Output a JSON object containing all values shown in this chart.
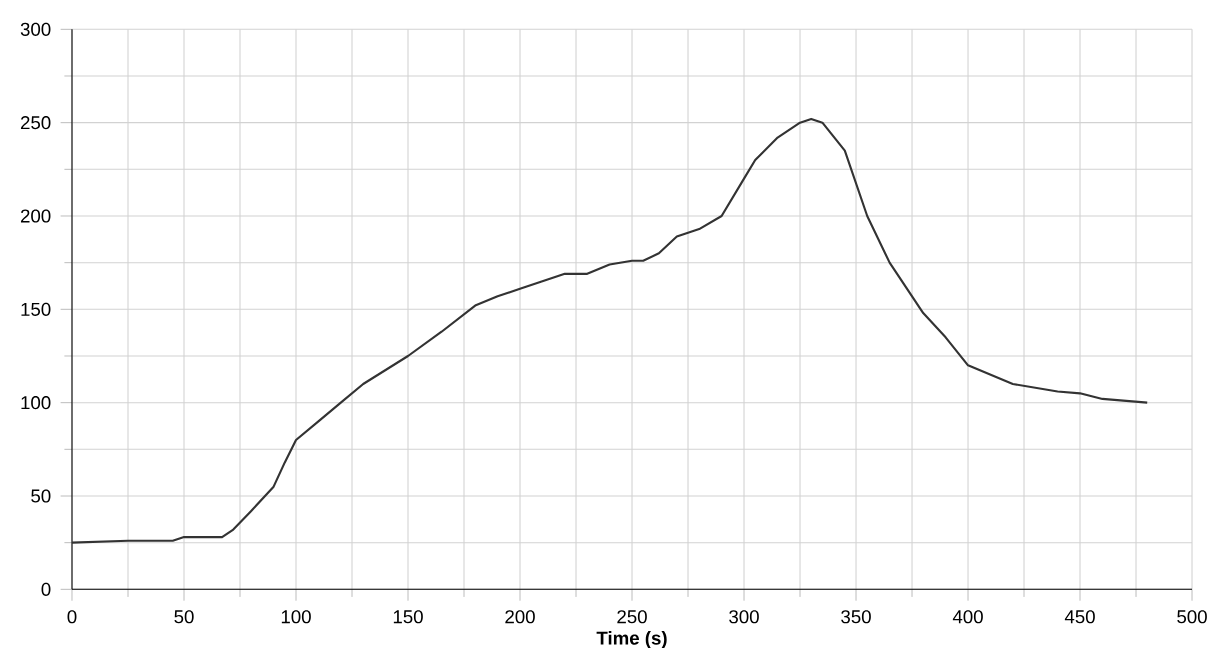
{
  "chart_data": {
    "type": "line",
    "xlabel": "Time (s)",
    "x": [
      0,
      25,
      45,
      50,
      67,
      72,
      80,
      90,
      95,
      100,
      110,
      120,
      130,
      150,
      165,
      180,
      190,
      200,
      210,
      220,
      230,
      240,
      250,
      255,
      262,
      270,
      280,
      290,
      300,
      305,
      315,
      325,
      330,
      335,
      345,
      355,
      365,
      380,
      390,
      400,
      410,
      420,
      440,
      450,
      460,
      480
    ],
    "series": [
      {
        "color": "#333333",
        "values": [
          25,
          26,
          26,
          28,
          28,
          32,
          42,
          55,
          68,
          80,
          90,
          100,
          110,
          125,
          138,
          152,
          157,
          161,
          165,
          169,
          169,
          174,
          176,
          176,
          180,
          189,
          193,
          200,
          220,
          230,
          242,
          250,
          252,
          250,
          235,
          200,
          175,
          148,
          135,
          120,
          115,
          110,
          106,
          105,
          102,
          100
        ]
      }
    ],
    "xlim": [
      0,
      500
    ],
    "ylim": [
      0,
      300
    ],
    "xticks": [
      0,
      50,
      100,
      150,
      200,
      250,
      300,
      350,
      400,
      450,
      500
    ],
    "yticks": [
      0,
      50,
      100,
      150,
      200,
      250,
      300
    ],
    "grid": true
  }
}
